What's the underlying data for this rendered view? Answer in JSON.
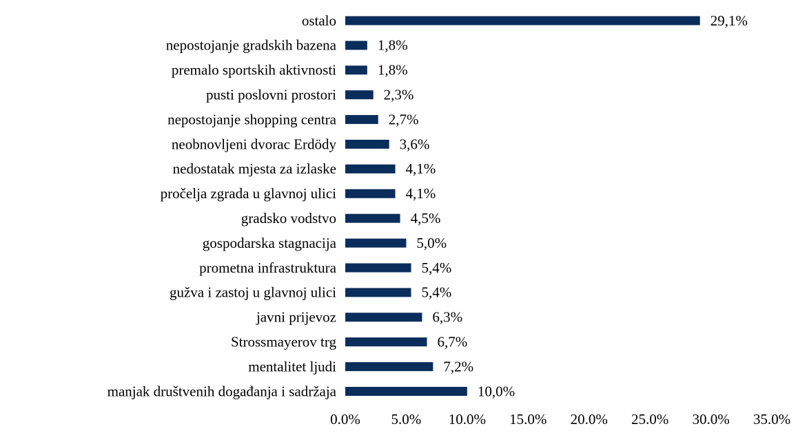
{
  "chart_data": {
    "type": "hbar",
    "categories": [
      "ostalo",
      "nepostojanje gradskih bazena",
      "premalo sportskih aktivnosti",
      "pusti poslovni prostori",
      "nepostojanje shopping centra",
      "neobnovljeni dvorac Erdödy",
      "nedostatak mjesta za izlaske",
      "pročelja zgrada u glavnoj ulici",
      "gradsko vodstvo",
      "gospodarska stagnacija",
      "prometna infrastruktura",
      "gužva i zastoj u glavnoj ulici",
      "javni prijevoz",
      "Strossmayerov trg",
      "mentalitet ljudi",
      "manjak društvenih događanja i sadržaja"
    ],
    "values": [
      29.1,
      1.8,
      1.8,
      2.3,
      2.7,
      3.6,
      4.1,
      4.1,
      4.5,
      5.0,
      5.4,
      5.4,
      6.3,
      6.7,
      7.2,
      10.0
    ],
    "value_labels": [
      "29,1%",
      "1,8%",
      "1,8%",
      "2,3%",
      "2,7%",
      "3,6%",
      "4,1%",
      "4,1%",
      "4,5%",
      "5,0%",
      "5,4%",
      "5,4%",
      "6,3%",
      "6,7%",
      "7,2%",
      "10,0%"
    ],
    "color": "#0b2d5b",
    "xlim": [
      0,
      35
    ],
    "xticks": [
      {
        "value": 0,
        "label": "0.0%"
      },
      {
        "value": 5,
        "label": "5.0%"
      },
      {
        "value": 10,
        "label": "10.0%"
      },
      {
        "value": 15,
        "label": "15.0%"
      },
      {
        "value": 20,
        "label": "20.0%"
      },
      {
        "value": 25,
        "label": "25.0%"
      },
      {
        "value": 30,
        "label": "30.0%"
      },
      {
        "value": 35,
        "label": "35.0%"
      }
    ],
    "grid": false
  }
}
